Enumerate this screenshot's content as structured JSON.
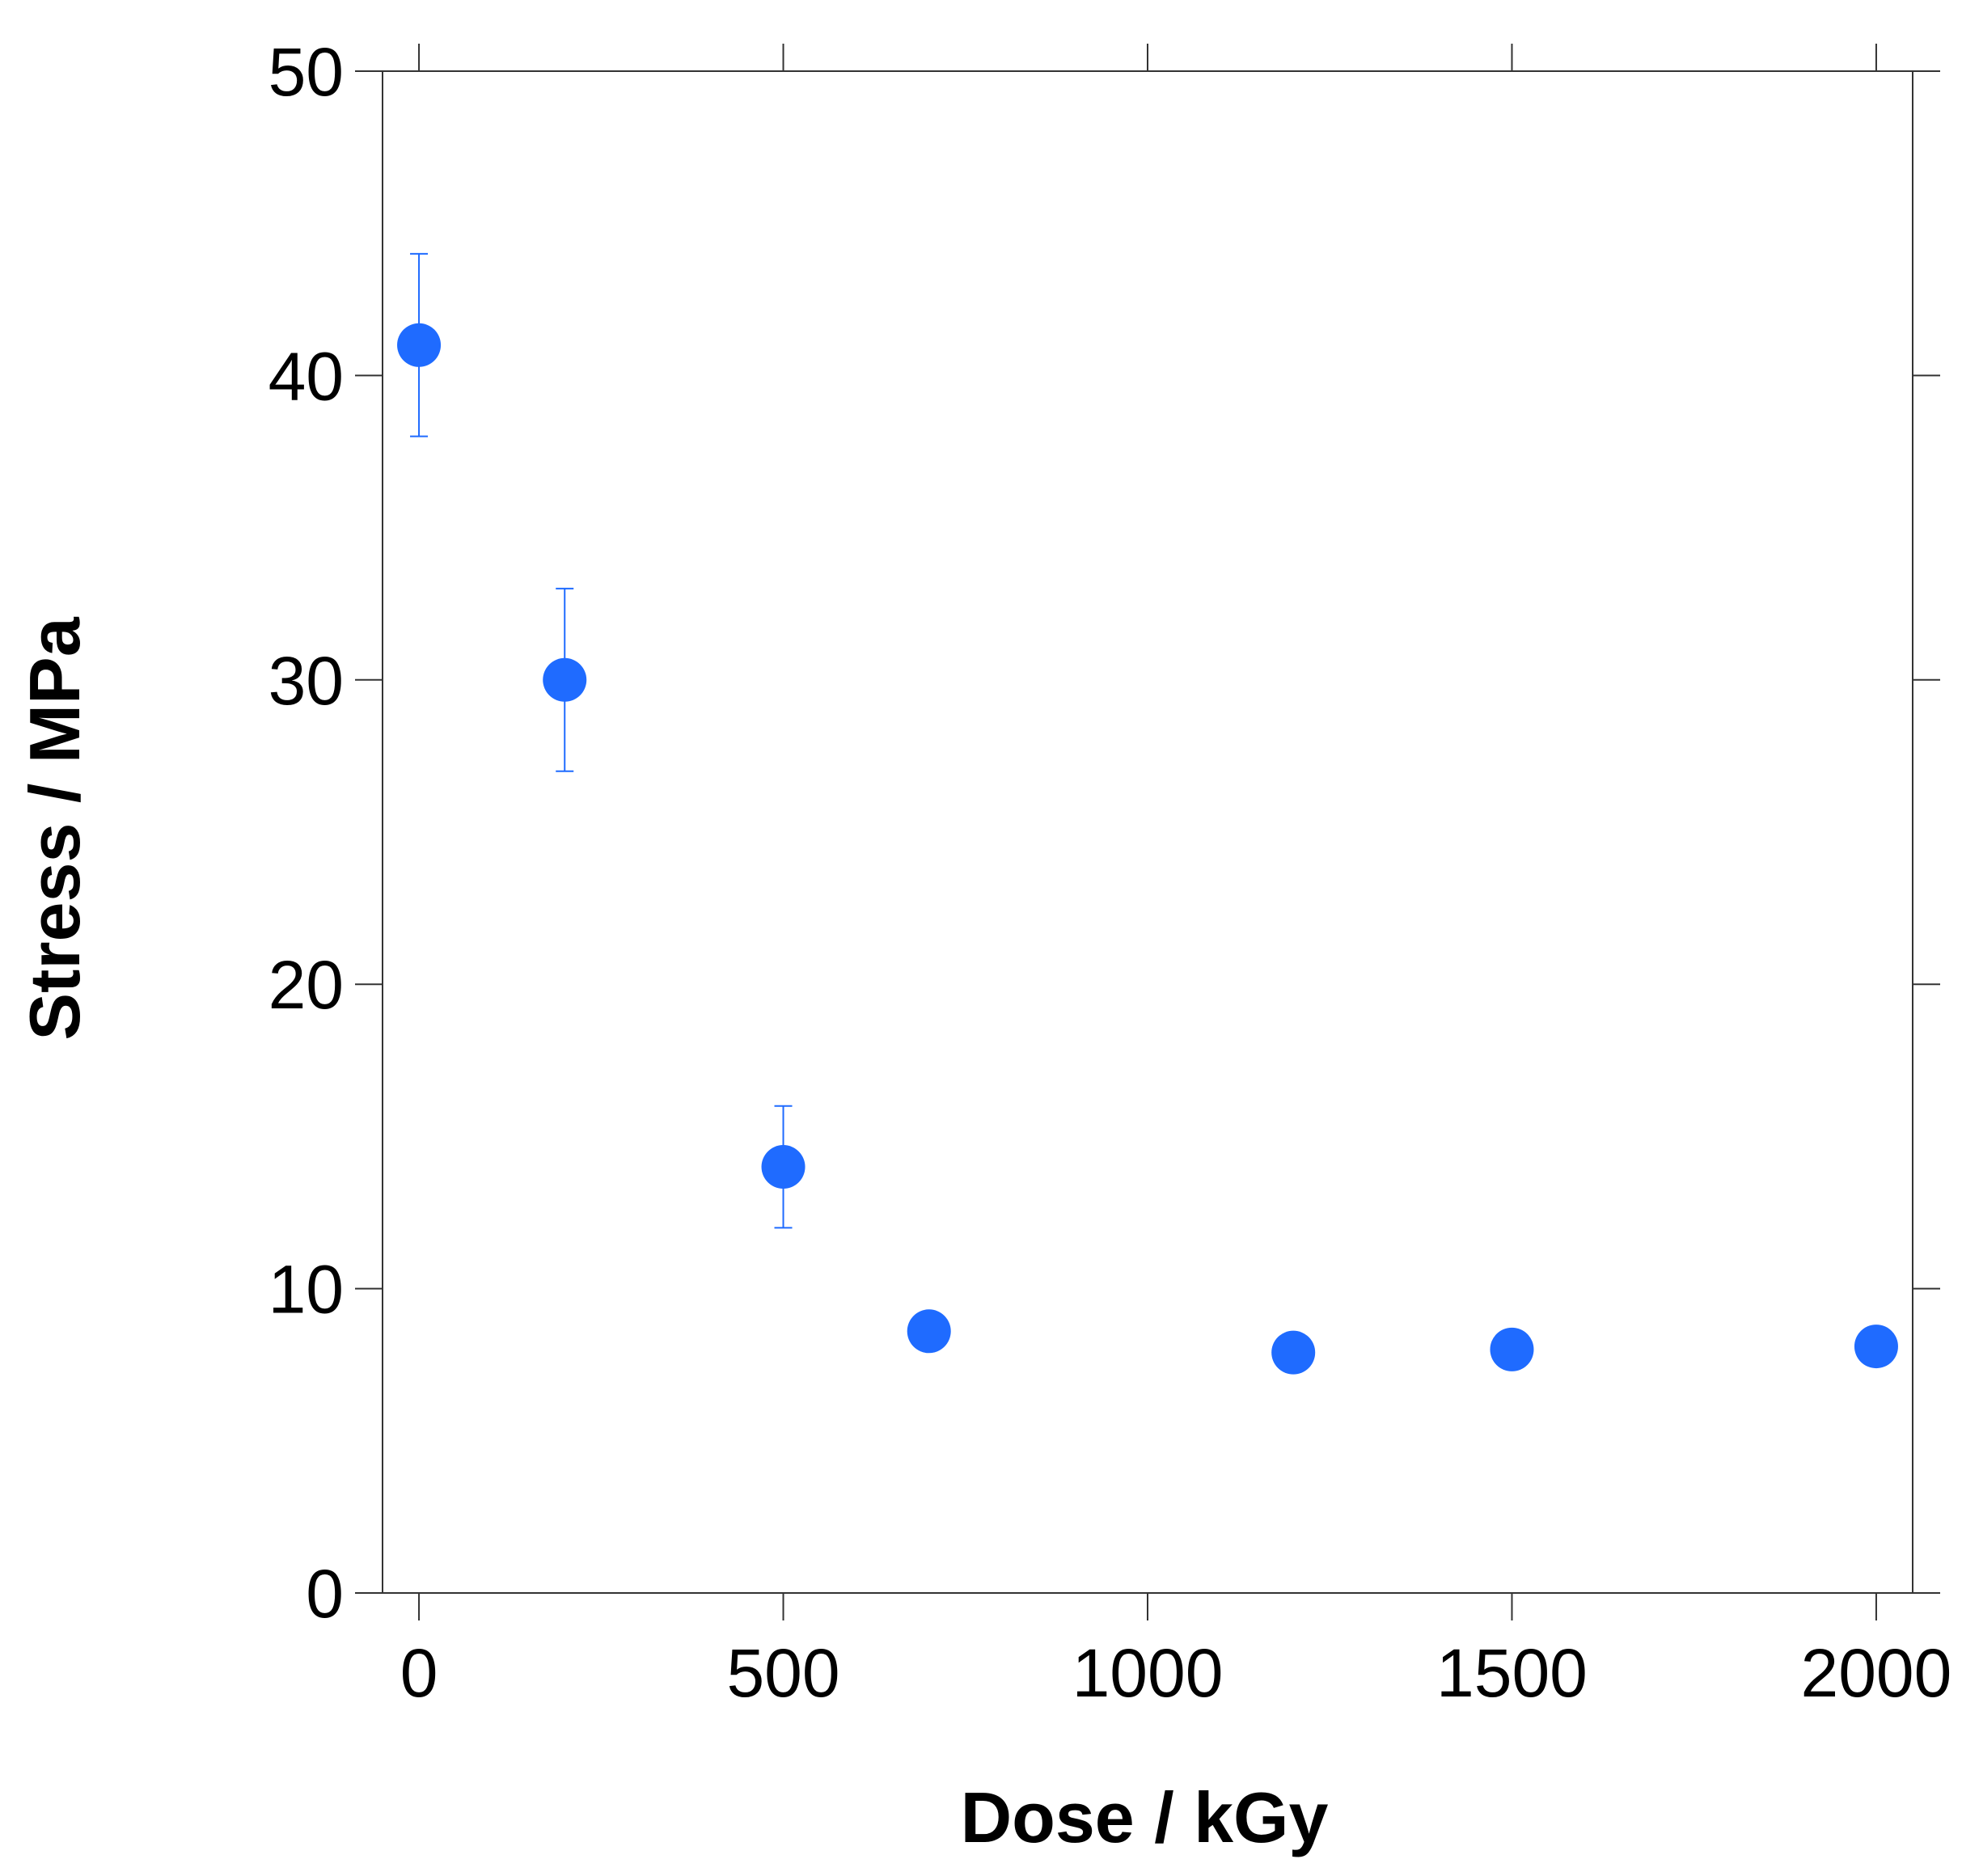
{
  "chart_data": {
    "type": "scatter",
    "title": "",
    "xlabel": "Dose / kGy",
    "ylabel": "Stress / MPa",
    "xlim": [
      -50,
      2050
    ],
    "ylim": [
      0,
      50
    ],
    "xticks": [
      0,
      500,
      1000,
      1500,
      2000
    ],
    "yticks": [
      0,
      10,
      20,
      30,
      40,
      50
    ],
    "xtick_labels": [
      "0",
      "500",
      "1000",
      "1500",
      "2000"
    ],
    "ytick_labels": [
      "0",
      "10",
      "20",
      "30",
      "40",
      "50"
    ],
    "grid": false,
    "legend": "none",
    "marker_color": "#1f6bff",
    "series": [
      {
        "points": [
          {
            "x": 0,
            "y": 41,
            "err": 3
          },
          {
            "x": 200,
            "y": 30,
            "err": 3
          },
          {
            "x": 500,
            "y": 14,
            "err": 2
          },
          {
            "x": 700,
            "y": 8.6
          },
          {
            "x": 1200,
            "y": 7.9
          },
          {
            "x": 1500,
            "y": 8.0
          },
          {
            "x": 2000,
            "y": 8.1
          }
        ]
      }
    ]
  }
}
